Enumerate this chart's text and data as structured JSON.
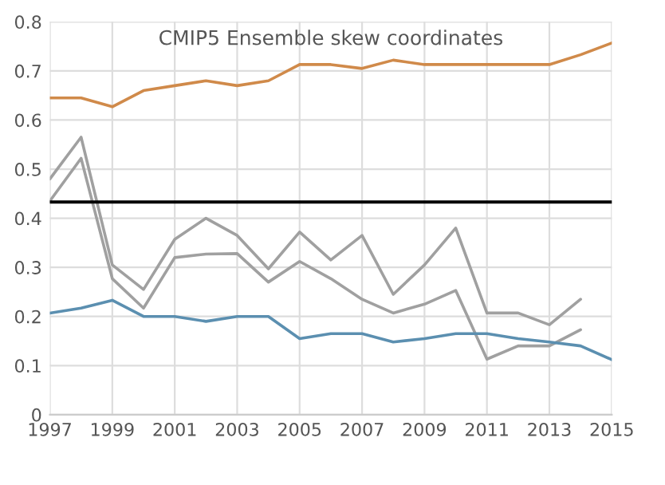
{
  "chart_data": {
    "type": "line",
    "title": "CMIP5 Ensemble skew coordinates",
    "x": [
      1997,
      1998,
      1999,
      2000,
      2001,
      2002,
      2003,
      2004,
      2005,
      2006,
      2007,
      2008,
      2009,
      2010,
      2011,
      2012,
      2013,
      2014,
      2015
    ],
    "series": [
      {
        "color": "#d08a4a",
        "values": [
          0.645,
          0.645,
          0.627,
          0.66,
          0.67,
          0.68,
          0.67,
          0.68,
          0.713,
          0.713,
          0.705,
          0.722,
          0.713,
          0.713,
          0.713,
          0.713,
          0.713,
          0.733,
          0.757
        ]
      },
      {
        "color": "#a0a0a0",
        "values": [
          0.48,
          0.565,
          0.305,
          0.255,
          0.357,
          0.4,
          0.365,
          0.297,
          0.372,
          0.315,
          0.365,
          0.245,
          0.305,
          0.38,
          0.207,
          0.207,
          0.183,
          0.235,
          null
        ]
      },
      {
        "color": "#a0a0a0",
        "values": [
          0.435,
          0.522,
          0.277,
          0.217,
          0.32,
          0.327,
          0.328,
          0.27,
          0.312,
          0.277,
          0.235,
          0.207,
          0.225,
          0.253,
          0.113,
          0.14,
          0.14,
          0.173,
          null
        ]
      },
      {
        "color": "#5b8fb0",
        "values": [
          0.207,
          0.217,
          0.233,
          0.2,
          0.2,
          0.19,
          0.2,
          0.2,
          0.155,
          0.165,
          0.165,
          0.148,
          0.155,
          0.165,
          0.165,
          0.155,
          0.148,
          0.14,
          0.112
        ]
      }
    ],
    "ref_lines": [
      {
        "axis": "y",
        "value": 0.433,
        "label": null,
        "color": "#000000"
      }
    ],
    "xlim": [
      1997,
      2015
    ],
    "xticks": [
      1997,
      1999,
      2001,
      2003,
      2005,
      2007,
      2009,
      2011,
      2013,
      2015
    ],
    "ylim": [
      0,
      0.8
    ],
    "yticks": [
      0,
      0.1,
      0.2,
      0.3,
      0.4,
      0.5,
      0.6,
      0.7,
      0.8
    ],
    "grid": true,
    "legend": false
  }
}
